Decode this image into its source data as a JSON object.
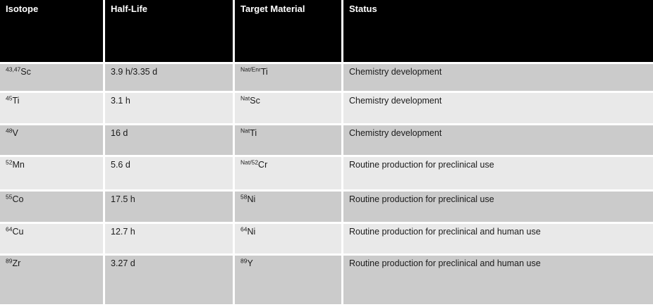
{
  "table": {
    "columns": [
      "Isotope",
      "Half-Life",
      "Target Material",
      "Status"
    ],
    "rows": [
      {
        "isotope_sup": "43,47",
        "isotope_base": "Sc",
        "half_life": "3.9 h/3.35 d",
        "target_sup": "Nat/Enr",
        "target_base": "Ti",
        "status": "Chemistry development"
      },
      {
        "isotope_sup": "45",
        "isotope_base": "Ti",
        "half_life": "3.1 h",
        "target_sup": "Nat",
        "target_base": "Sc",
        "status": "Chemistry development"
      },
      {
        "isotope_sup": "48",
        "isotope_base": "V",
        "half_life": "16 d",
        "target_sup": "Nat",
        "target_base": "Ti",
        "status": "Chemistry development"
      },
      {
        "isotope_sup": "52",
        "isotope_base": "Mn",
        "half_life": "5.6 d",
        "target_sup": "Nat/52",
        "target_base": "Cr",
        "status": "Routine production for preclinical use"
      },
      {
        "isotope_sup": "55",
        "isotope_base": "Co",
        "half_life": "17.5 h",
        "target_sup": "58",
        "target_base": "Ni",
        "status": "Routine production for preclinical use"
      },
      {
        "isotope_sup": "64",
        "isotope_base": "Cu",
        "half_life": "12.7 h",
        "target_sup": "64",
        "target_base": "Ni",
        "status": "Routine production for preclinical and human use"
      },
      {
        "isotope_sup": "89",
        "isotope_base": "Zr",
        "half_life": "3.27 d",
        "target_sup": "89",
        "target_base": "Y",
        "status": "Routine production for preclinical and human use"
      }
    ],
    "theme": {
      "header_bg": "#000000",
      "header_text": "#ffffff",
      "row_odd_bg": "#cbcbcb",
      "row_even_bg": "#e9e9e9",
      "body_text": "#1a1a1a",
      "grid_color": "#ffffff"
    }
  }
}
